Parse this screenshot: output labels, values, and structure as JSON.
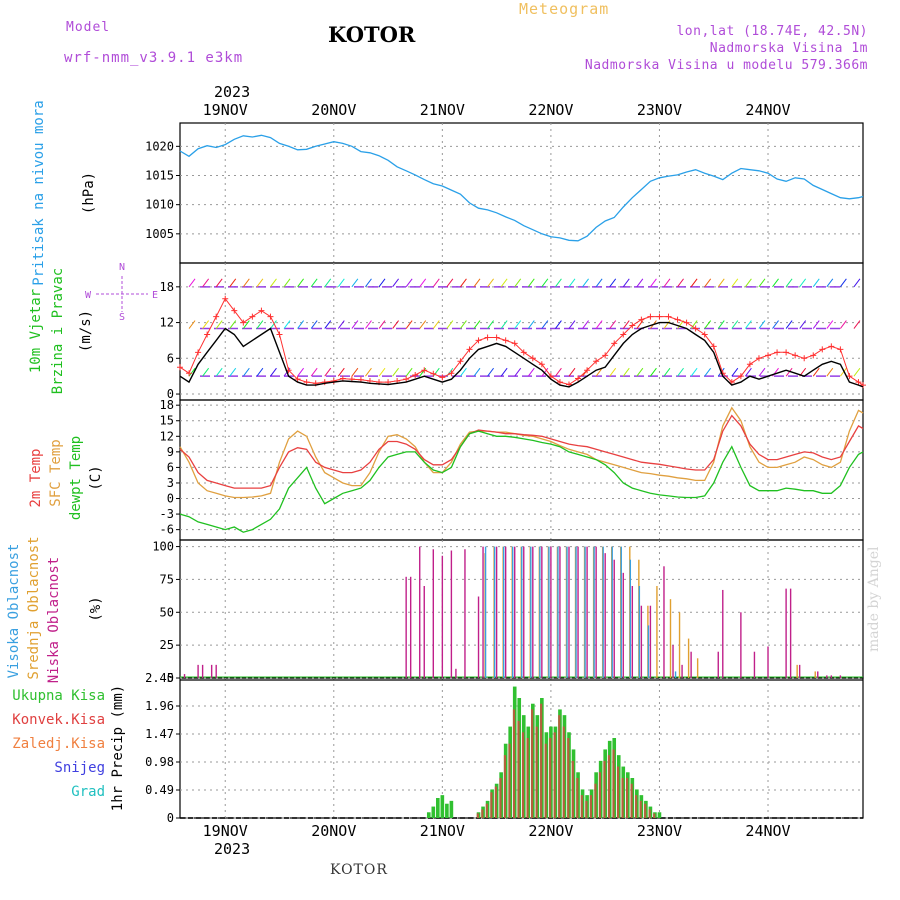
{
  "header": {
    "title": "KOTOR",
    "meteogram": "Meteogram",
    "model_label": "Model",
    "model_name": "wrf-nmm_v3.9.1 e3km",
    "lonlat": "lon,lat (18.74E, 42.5N)",
    "elevation": "Nadmorska Visina 1m",
    "model_elevation": "Nadmorska Visina u modelu 579.366m",
    "year": "2023"
  },
  "footer": {
    "station": "KOTOR",
    "credit": "made by Angel"
  },
  "colors": {
    "pressure": "#2aa0e8",
    "temp2m": "#e84040",
    "sfc": "#e0a040",
    "dewpt": "#20c020",
    "high_cloud": "#3aa0e0",
    "mid_cloud": "#e0a030",
    "low_cloud": "#c0208a",
    "total_rain": "#30c030",
    "conv_rain": "#e04040",
    "frozen": "#f08040",
    "snow": "#4040e0",
    "hail": "#20c0c0",
    "wind_line": "#000000",
    "gust": "#ff3030"
  },
  "time_axis": {
    "dates": [
      "19NOV",
      "20NOV",
      "21NOV",
      "22NOV",
      "23NOV",
      "24NOV"
    ],
    "start_hour": -10,
    "end_hour": 141
  },
  "compass": {
    "n": "N",
    "s": "S",
    "e": "E",
    "w": "W"
  },
  "chart_data": [
    {
      "type": "line",
      "panel": "pressure",
      "ylabel": [
        "Pritisak na nivou mora",
        "(hPa)"
      ],
      "ylim": [
        1000,
        1024
      ],
      "yticks": [
        1005,
        1010,
        1015,
        1020
      ],
      "grid": true,
      "x_hours": [
        -10,
        -8,
        -6,
        -4,
        -2,
        0,
        2,
        4,
        6,
        8,
        10,
        12,
        14,
        16,
        18,
        20,
        22,
        24,
        26,
        28,
        30,
        32,
        34,
        36,
        38,
        40,
        42,
        44,
        46,
        48,
        50,
        52,
        54,
        56,
        58,
        60,
        62,
        64,
        66,
        68,
        70,
        72,
        74,
        76,
        78,
        80,
        82,
        84,
        86,
        88,
        90,
        92,
        94,
        96,
        98,
        100,
        102,
        104,
        106,
        108,
        110,
        112,
        114,
        116,
        118,
        120,
        122,
        124,
        126,
        128,
        130,
        132,
        134,
        136,
        138,
        140,
        141
      ],
      "series": [
        {
          "name": "Pritisak",
          "values": [
            1019.2,
            1018.3,
            1019.6,
            1020.1,
            1019.8,
            1020.3,
            1021.2,
            1021.8,
            1021.6,
            1021.9,
            1021.5,
            1020.5,
            1020.0,
            1019.4,
            1019.5,
            1020.0,
            1020.4,
            1020.8,
            1020.5,
            1020.0,
            1019.1,
            1018.9,
            1018.4,
            1017.6,
            1016.5,
            1015.8,
            1015.1,
            1014.3,
            1013.6,
            1013.2,
            1012.5,
            1011.8,
            1010.3,
            1009.4,
            1009.1,
            1008.6,
            1007.9,
            1007.3,
            1006.4,
            1005.7,
            1005.0,
            1004.5,
            1004.3,
            1003.9,
            1003.8,
            1004.6,
            1006.1,
            1007.2,
            1007.8,
            1009.6,
            1011.2,
            1012.6,
            1014.0,
            1014.6,
            1014.9,
            1015.1,
            1015.6,
            1016.0,
            1015.4,
            1014.9,
            1014.3,
            1015.4,
            1016.2,
            1016.0,
            1015.8,
            1015.4,
            1014.4,
            1014.0,
            1014.6,
            1014.4,
            1013.3,
            1012.6,
            1011.9,
            1011.2,
            1011.0,
            1011.2,
            1011.4
          ]
        }
      ]
    },
    {
      "type": "line",
      "panel": "wind",
      "ylabel": [
        "10m Vjetar",
        "Brzina i Pravac",
        "(m/s)"
      ],
      "ylim": [
        -1,
        22
      ],
      "yticks": [
        0,
        6,
        12,
        18
      ],
      "grid": true,
      "x_hours": [
        -10,
        -8,
        -6,
        -4,
        -2,
        0,
        2,
        4,
        6,
        8,
        10,
        12,
        14,
        16,
        18,
        20,
        22,
        24,
        26,
        28,
        30,
        32,
        34,
        36,
        38,
        40,
        42,
        44,
        46,
        48,
        50,
        52,
        54,
        56,
        58,
        60,
        62,
        64,
        66,
        68,
        70,
        72,
        74,
        76,
        78,
        80,
        82,
        84,
        86,
        88,
        90,
        92,
        94,
        96,
        98,
        100,
        102,
        104,
        106,
        108,
        110,
        112,
        114,
        116,
        118,
        120,
        122,
        124,
        126,
        128,
        130,
        132,
        134,
        136,
        138,
        140,
        141
      ],
      "series": [
        {
          "name": "Brzina",
          "values": [
            3,
            2,
            5,
            7,
            9,
            11,
            10,
            8,
            9,
            10,
            11,
            7,
            3,
            2,
            1.5,
            1.5,
            1.8,
            2,
            2.2,
            2.1,
            2.0,
            1.8,
            1.7,
            1.6,
            1.8,
            2.0,
            2.5,
            3,
            2.5,
            2,
            2.5,
            4,
            6,
            7.5,
            8,
            8.5,
            8,
            7,
            6,
            5,
            4,
            2.5,
            1.5,
            1.2,
            2,
            3,
            4,
            4.5,
            6.5,
            8.5,
            10,
            11,
            11.5,
            12,
            12,
            11.5,
            11,
            10,
            9,
            7,
            3,
            1.5,
            2,
            3,
            2.5,
            3,
            3.5,
            4,
            3.5,
            3,
            4,
            5,
            5.5,
            5,
            2,
            1.5,
            1.2
          ]
        },
        {
          "name": "Udar",
          "values": [
            4.5,
            3.5,
            7,
            10,
            13,
            16,
            14,
            12,
            13,
            14,
            13,
            10,
            4,
            2.5,
            2,
            1.8,
            2,
            2.2,
            2.6,
            2.5,
            2.4,
            2.2,
            2.0,
            2.0,
            2.2,
            2.5,
            3.2,
            4,
            3.4,
            2.8,
            3.5,
            5.5,
            7.5,
            9,
            9.5,
            9.5,
            9,
            8.5,
            7,
            6,
            5,
            3,
            2,
            1.6,
            2.6,
            4,
            5.5,
            6.5,
            8.5,
            10,
            11.5,
            12.5,
            13,
            13,
            13,
            12.5,
            12,
            11,
            10,
            8,
            3.5,
            2,
            3,
            5,
            6,
            6.5,
            7,
            7,
            6.5,
            6,
            6.5,
            7.5,
            8,
            7.5,
            3,
            2,
            1.5
          ]
        }
      ]
    },
    {
      "type": "line",
      "panel": "temperature",
      "ylabel": [
        "2m Temp",
        "SFC Temp",
        "dewpt Temp",
        "(C)"
      ],
      "ylim": [
        -8,
        19
      ],
      "yticks": [
        -6,
        -3,
        0,
        3,
        6,
        9,
        12,
        15,
        18
      ],
      "grid": true,
      "x_hours": [
        -10,
        -8,
        -6,
        -4,
        -2,
        0,
        2,
        4,
        6,
        8,
        10,
        12,
        14,
        16,
        18,
        20,
        22,
        24,
        26,
        28,
        30,
        32,
        34,
        36,
        38,
        40,
        42,
        44,
        46,
        48,
        50,
        52,
        54,
        56,
        58,
        60,
        62,
        64,
        66,
        68,
        70,
        72,
        74,
        76,
        78,
        80,
        82,
        84,
        86,
        88,
        90,
        92,
        94,
        96,
        98,
        100,
        102,
        104,
        106,
        108,
        110,
        112,
        114,
        116,
        118,
        120,
        122,
        124,
        126,
        128,
        130,
        132,
        134,
        136,
        138,
        140,
        141
      ],
      "series": [
        {
          "name": "2m Temp",
          "values": [
            9.5,
            8,
            5,
            3.5,
            3,
            2.5,
            2,
            2,
            2,
            2,
            2.5,
            6,
            9,
            9.8,
            9.5,
            7,
            6,
            5.5,
            5,
            5,
            5.5,
            7,
            9.5,
            11,
            11,
            10.5,
            9.5,
            7.5,
            6.5,
            6.5,
            7.5,
            10,
            12.5,
            13.2,
            13,
            12.8,
            12.5,
            12.5,
            12.3,
            12.2,
            12,
            11.5,
            11,
            10.5,
            10.2,
            10,
            9.5,
            9,
            8.5,
            8,
            7.5,
            7,
            6.8,
            6.6,
            6.3,
            6,
            5.7,
            5.5,
            5.5,
            7.5,
            13,
            16,
            14,
            10.5,
            8.5,
            7.5,
            7.5,
            8,
            8.5,
            9,
            8.8,
            8,
            7.5,
            8,
            11,
            14,
            13.5
          ]
        },
        {
          "name": "SFC Temp",
          "values": [
            10,
            7,
            3,
            1.5,
            1,
            0.5,
            0.2,
            0.2,
            0.3,
            0.5,
            1,
            7,
            11.5,
            13,
            12,
            8,
            5,
            4,
            3,
            2.5,
            2.5,
            5,
            9,
            12,
            12.3,
            11.5,
            10,
            7,
            5,
            5,
            7,
            10.5,
            12.8,
            13,
            13,
            12.8,
            12.8,
            12.5,
            12.2,
            12,
            11.5,
            11,
            10.2,
            9.5,
            9,
            8.5,
            7.5,
            7,
            6.5,
            6,
            5.5,
            5,
            4.8,
            4.5,
            4.3,
            4,
            3.8,
            3.5,
            3.5,
            7,
            14,
            17.5,
            15,
            10,
            7,
            6,
            6,
            6.5,
            7,
            8,
            7.5,
            6.5,
            6,
            7,
            13,
            17,
            16.5
          ]
        },
        {
          "name": "dewpt Temp",
          "values": [
            -3,
            -3.5,
            -4.5,
            -5,
            -5.5,
            -6,
            -5.5,
            -6.5,
            -6,
            -5,
            -4,
            -2,
            2,
            4,
            6,
            2,
            -1,
            0,
            1,
            1.5,
            2,
            3.5,
            6,
            8,
            8.5,
            9,
            9,
            7,
            5.5,
            5,
            6,
            10,
            12.5,
            13,
            12.5,
            12,
            12,
            11.8,
            11.5,
            11.2,
            10.8,
            10.5,
            10,
            9,
            8.5,
            8,
            7.5,
            6.5,
            5,
            3,
            2,
            1.5,
            1,
            0.7,
            0.5,
            0.3,
            0.2,
            0.2,
            0.5,
            3,
            7,
            10,
            6,
            2.5,
            1.5,
            1.5,
            1.5,
            2,
            1.8,
            1.5,
            1.5,
            1,
            1,
            2.5,
            6,
            8.5,
            9
          ]
        }
      ]
    },
    {
      "type": "bar",
      "panel": "cloud",
      "ylabel": [
        "Visoka Oblacnost",
        "Srednja Oblacnost",
        "Niska Oblacnost",
        "(%)"
      ],
      "ylim": [
        0,
        105
      ],
      "yticks": [
        0,
        25,
        50,
        75,
        100
      ],
      "grid": true,
      "series": [
        {
          "name": "Niska Oblacnost",
          "x_hours": [
            -9,
            -6,
            -5,
            -3,
            -2,
            40,
            41,
            43,
            44,
            46,
            48,
            50,
            51,
            53,
            56,
            57,
            60,
            62,
            64,
            66,
            68,
            70,
            72,
            74,
            76,
            78,
            80,
            82,
            84,
            86,
            88,
            90,
            92,
            94,
            97,
            99,
            101,
            103,
            109,
            110,
            114,
            117,
            120,
            124,
            125,
            127,
            131,
            133,
            134,
            136
          ],
          "values": [
            3,
            10,
            10,
            10,
            10,
            77,
            77,
            100,
            70,
            98,
            93,
            97,
            7,
            98,
            62,
            100,
            100,
            100,
            100,
            100,
            100,
            100,
            100,
            100,
            100,
            100,
            100,
            100,
            95,
            90,
            80,
            70,
            55,
            55,
            85,
            25,
            10,
            20,
            20,
            67,
            50,
            20,
            24,
            68,
            68,
            10,
            5,
            2,
            2,
            2
          ]
        },
        {
          "name": "Srednja Oblacnost",
          "x_hours": [
            57,
            59,
            61,
            63,
            65,
            67,
            69,
            71,
            73,
            75,
            77,
            79,
            81,
            83,
            85,
            87,
            89,
            91,
            93,
            95,
            98,
            100,
            102,
            104,
            126,
            130
          ],
          "values": [
            95,
            100,
            100,
            100,
            100,
            100,
            100,
            100,
            100,
            100,
            100,
            100,
            100,
            100,
            100,
            100,
            100,
            90,
            55,
            70,
            60,
            50,
            30,
            15,
            10,
            5
          ]
        },
        {
          "name": "Visoka Oblacnost",
          "x_hours": [
            58,
            60,
            62,
            64,
            66,
            68,
            70,
            72,
            74,
            76,
            78,
            80,
            82,
            84,
            86,
            88,
            90,
            92,
            94,
            100
          ],
          "values": [
            100,
            100,
            100,
            100,
            100,
            100,
            100,
            100,
            100,
            100,
            100,
            100,
            100,
            100,
            100,
            100,
            90,
            70,
            40,
            5
          ]
        }
      ]
    },
    {
      "type": "bar",
      "panel": "precip",
      "ylabel": [
        "1hr Precip (mm)"
      ],
      "ylim": [
        0,
        2.45
      ],
      "yticks": [
        0,
        0.49,
        0.98,
        1.47,
        1.96,
        2.45
      ],
      "grid": true,
      "legend": [
        "Ukupna Kisa",
        "Konvek.Kisa",
        "Zaledj.Kisa",
        "Snijeg",
        "Grad"
      ],
      "x_hours": [
        45,
        46,
        47,
        48,
        49,
        50,
        51,
        56,
        57,
        58,
        59,
        60,
        61,
        62,
        63,
        64,
        65,
        66,
        67,
        68,
        69,
        70,
        71,
        72,
        73,
        74,
        75,
        76,
        77,
        78,
        79,
        80,
        81,
        82,
        83,
        84,
        85,
        86,
        87,
        88,
        89,
        90,
        91,
        92,
        93,
        94,
        95,
        96
      ],
      "series": [
        {
          "name": "Ukupna Kisa",
          "values": [
            0.1,
            0.2,
            0.35,
            0.4,
            0.25,
            0.3,
            0.0,
            0.1,
            0.2,
            0.3,
            0.5,
            0.6,
            0.8,
            1.3,
            1.6,
            2.3,
            2.1,
            1.8,
            1.6,
            2.0,
            1.8,
            2.1,
            1.5,
            1.6,
            1.6,
            1.9,
            1.8,
            1.5,
            1.2,
            0.8,
            0.5,
            0.4,
            0.5,
            0.8,
            1.0,
            1.2,
            1.35,
            1.4,
            1.1,
            0.9,
            0.8,
            0.7,
            0.5,
            0.4,
            0.3,
            0.2,
            0.1,
            0.1
          ]
        },
        {
          "name": "Konvek.Kisa",
          "values": [
            0,
            0,
            0,
            0,
            0,
            0,
            0,
            0.08,
            0.15,
            0.25,
            0.45,
            0.55,
            0.7,
            1.1,
            1.3,
            1.9,
            1.7,
            1.5,
            1.4,
            1.9,
            1.6,
            2.0,
            1.3,
            1.4,
            1.5,
            1.8,
            1.6,
            1.4,
            1.0,
            0.7,
            0.4,
            0.3,
            0.4,
            0.6,
            0.8,
            1.0,
            1.1,
            1.2,
            0.9,
            0.7,
            0.7,
            0.6,
            0.4,
            0.3,
            0.25,
            0.15,
            0.08,
            0
          ]
        }
      ]
    }
  ]
}
